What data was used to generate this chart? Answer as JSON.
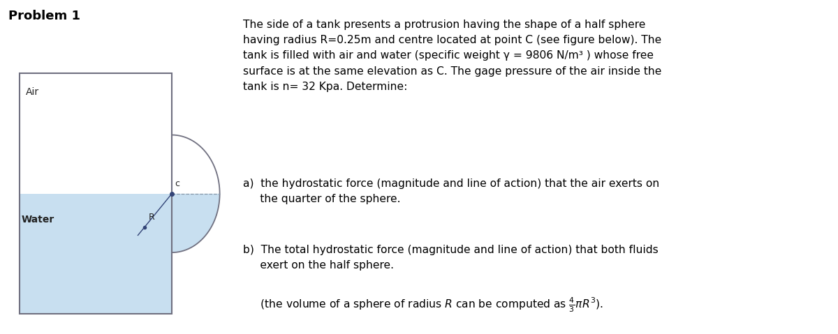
{
  "title": "Problem 1",
  "title_fontsize": 13,
  "title_fontweight": "bold",
  "fig_width": 12.0,
  "fig_height": 4.79,
  "fig_dpi": 100,
  "bg_color": "#ffffff",
  "air_color": "#ffffff",
  "water_color": "#c8dff0",
  "tank_border_color": "#707080",
  "air_label": "Air",
  "water_label": "Water",
  "C_label": "c",
  "R_label": "R",
  "text_color": "#000000",
  "label_color": "#222222"
}
